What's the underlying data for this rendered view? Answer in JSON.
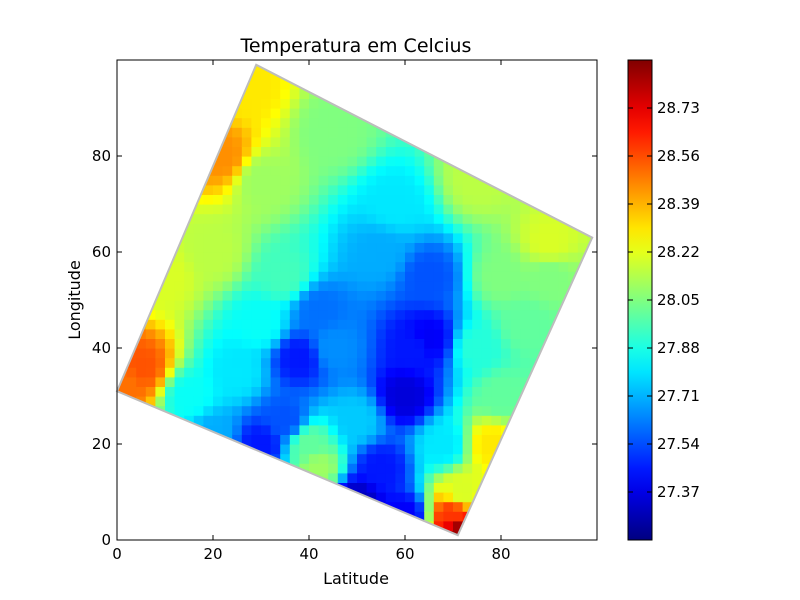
{
  "chart_data": {
    "type": "heatmap",
    "title": "Temperatura em Celcius",
    "xlabel": "Latitude",
    "ylabel": "Longitude",
    "xlim": [
      0,
      100
    ],
    "ylim": [
      0,
      100
    ],
    "x_ticks": [
      0,
      20,
      40,
      60,
      80
    ],
    "y_ticks": [
      0,
      20,
      40,
      60,
      80
    ],
    "colormap": "jet",
    "colorbar": {
      "range": [
        27.2,
        28.9
      ],
      "ticks": [
        27.37,
        27.54,
        27.71,
        27.88,
        28.05,
        28.22,
        28.39,
        28.56,
        28.73
      ],
      "tick_labels": [
        "27.37",
        "27.54",
        "27.71",
        "27.88",
        "28.05",
        "28.22",
        "28.39",
        "28.56",
        "28.73"
      ]
    },
    "data_region": {
      "shape": "rotated-square",
      "corners": [
        [
          29,
          99
        ],
        [
          99,
          63
        ],
        [
          71,
          1
        ],
        [
          0,
          31
        ]
      ]
    },
    "field_points": [
      [
        5,
        36,
        28.55
      ],
      [
        2,
        33,
        28.5
      ],
      [
        22,
        80,
        28.45
      ],
      [
        27,
        94,
        28.3
      ],
      [
        10,
        55,
        28.2
      ],
      [
        20,
        60,
        28.15
      ],
      [
        30,
        75,
        28.1
      ],
      [
        45,
        85,
        28.05
      ],
      [
        75,
        75,
        28.15
      ],
      [
        90,
        62,
        28.2
      ],
      [
        80,
        55,
        28.05
      ],
      [
        85,
        45,
        28.0
      ],
      [
        35,
        55,
        27.95
      ],
      [
        30,
        45,
        27.85
      ],
      [
        25,
        35,
        27.8
      ],
      [
        15,
        30,
        27.85
      ],
      [
        45,
        40,
        27.65
      ],
      [
        42,
        48,
        27.6
      ],
      [
        38,
        38,
        27.45
      ],
      [
        35,
        25,
        27.55
      ],
      [
        30,
        20,
        27.45
      ],
      [
        20,
        22,
        27.7
      ],
      [
        50,
        25,
        27.75
      ],
      [
        55,
        60,
        27.7
      ],
      [
        58,
        70,
        27.8
      ],
      [
        62,
        40,
        27.45
      ],
      [
        60,
        30,
        27.35
      ],
      [
        65,
        42,
        27.4
      ],
      [
        55,
        15,
        27.45
      ],
      [
        50,
        8,
        27.3
      ],
      [
        60,
        5,
        27.4
      ],
      [
        68,
        20,
        27.8
      ],
      [
        72,
        10,
        28.2
      ],
      [
        70,
        5,
        28.6
      ],
      [
        71,
        2,
        28.85
      ],
      [
        78,
        20,
        28.3
      ],
      [
        80,
        30,
        28.0
      ],
      [
        75,
        40,
        27.9
      ],
      [
        90,
        55,
        28.05
      ],
      [
        40,
        20,
        28.0
      ],
      [
        42,
        15,
        28.1
      ],
      [
        47,
        5,
        27.4
      ],
      [
        65,
        55,
        27.55
      ]
    ]
  }
}
